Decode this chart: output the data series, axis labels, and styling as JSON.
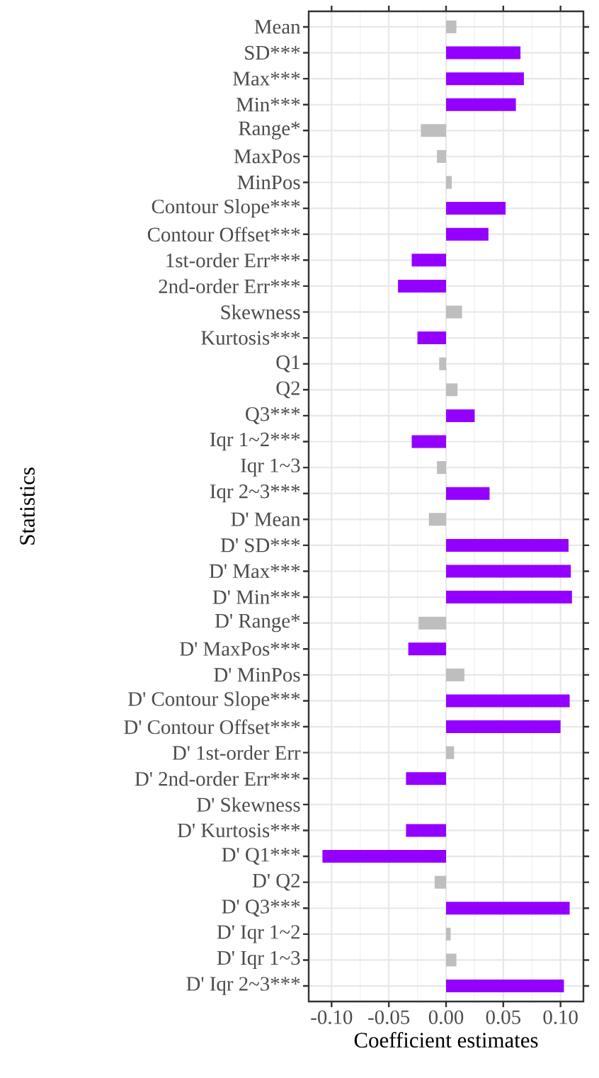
{
  "chart_data": {
    "type": "bar",
    "orientation": "horizontal",
    "xlabel": "Coefficient estimates",
    "ylabel": "Statistics",
    "categories": [
      "Mean",
      "SD***",
      "Max***",
      "Min***",
      "Range*",
      "MaxPos",
      "MinPos",
      "Contour Slope***",
      "Contour Offset***",
      "1st-order Err***",
      "2nd-order Err***",
      "Skewness",
      "Kurtosis***",
      "Q1",
      "Q2",
      "Q3***",
      "Iqr 1~2***",
      "Iqr 1~3",
      "Iqr 2~3***",
      "D' Mean",
      "D' SD***",
      "D' Max***",
      "D' Min***",
      "D' Range*",
      "D' MaxPos***",
      "D' MinPos",
      "D' Contour Slope***",
      "D' Contour Offset***",
      "D' 1st-order Err",
      "D' 2nd-order Err***",
      "D' Skewness",
      "D' Kurtosis***",
      "D' Q1***",
      "D' Q2",
      "D' Q3***",
      "D' Iqr 1~2",
      "D' Iqr 1~3",
      "D' Iqr 2~3***"
    ],
    "values": [
      0.009,
      0.065,
      0.068,
      0.061,
      -0.022,
      -0.008,
      0.005,
      0.052,
      0.037,
      -0.03,
      -0.042,
      0.014,
      -0.025,
      -0.006,
      0.01,
      0.025,
      -0.03,
      -0.008,
      0.038,
      -0.015,
      0.107,
      0.109,
      0.11,
      -0.024,
      -0.033,
      0.016,
      0.108,
      0.1,
      0.007,
      -0.035,
      0.0,
      -0.035,
      -0.108,
      -0.01,
      0.108,
      0.004,
      0.009,
      0.103
    ],
    "colors": [
      "#bebebe",
      "#9400ff",
      "#9400ff",
      "#9400ff",
      "#bebebe",
      "#bebebe",
      "#bebebe",
      "#9400ff",
      "#9400ff",
      "#9400ff",
      "#9400ff",
      "#bebebe",
      "#9400ff",
      "#bebebe",
      "#bebebe",
      "#9400ff",
      "#9400ff",
      "#bebebe",
      "#9400ff",
      "#bebebe",
      "#9400ff",
      "#9400ff",
      "#9400ff",
      "#bebebe",
      "#9400ff",
      "#bebebe",
      "#9400ff",
      "#9400ff",
      "#bebebe",
      "#9400ff",
      "#bebebe",
      "#9400ff",
      "#9400ff",
      "#bebebe",
      "#9400ff",
      "#bebebe",
      "#bebebe",
      "#9400ff"
    ],
    "xlim": [
      -0.12,
      0.12
    ],
    "xticks": [
      {
        "value": -0.1,
        "label": "-0.10"
      },
      {
        "value": -0.05,
        "label": "-0.05"
      },
      {
        "value": 0,
        "label": "0.00"
      },
      {
        "value": 0.05,
        "label": "0.05"
      },
      {
        "value": 0.1,
        "label": "0.10"
      }
    ],
    "grid": true
  }
}
